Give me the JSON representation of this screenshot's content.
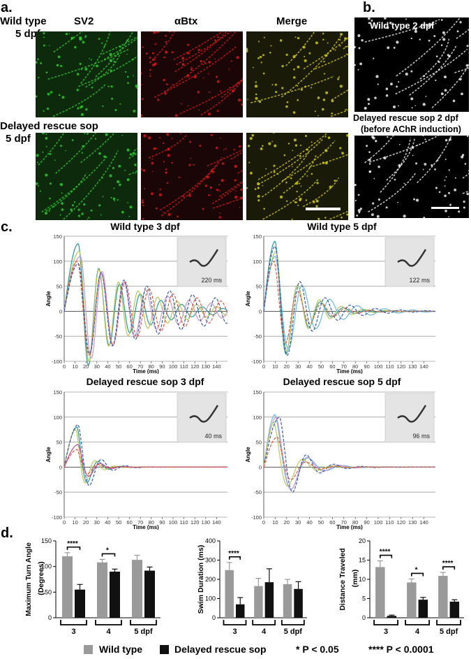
{
  "panels": {
    "a": {
      "letter": "a.",
      "column_labels": [
        "SV2",
        "αBtx",
        "Merge"
      ],
      "row_labels": [
        {
          "line1": "Wild type",
          "line2": "5 dpf"
        },
        {
          "line1": "Delayed rescue sop",
          "line2": "5 dpf"
        }
      ],
      "colors": {
        "sv2": "#2fd12f",
        "abtx": "#e01a1a",
        "merge": "#d6d21a"
      }
    },
    "b": {
      "letter": "b.",
      "labels": [
        "Wild type 2 dpf",
        "Delayed rescue sop 2 dpf",
        "(before AChR induction)"
      ]
    },
    "c": {
      "letter": "c."
    },
    "d": {
      "letter": "d."
    }
  },
  "chart_data": [
    {
      "type": "line",
      "title": "Wild type 3 dpf",
      "xlabel": "Time (ms)",
      "ylabel": "Angle",
      "xlim": [
        0,
        150
      ],
      "ylim": [
        -100,
        150
      ],
      "xticks": [
        0,
        10,
        20,
        30,
        40,
        50,
        60,
        70,
        80,
        90,
        100,
        110,
        120,
        130,
        140
      ],
      "yticks": [
        -100,
        -50,
        0,
        50,
        100,
        150
      ],
      "inset_time": "220 ms",
      "series": [
        {
          "style": "solid",
          "color": "#2a9a9a",
          "peak": 135,
          "peak_t": 13,
          "period": 19,
          "decay": 0.012
        },
        {
          "style": "solid",
          "color": "#b7c85a",
          "peak": 120,
          "peak_t": 14,
          "period": 18,
          "decay": 0.01
        },
        {
          "style": "solid",
          "color": "#c79ad0",
          "peak": 110,
          "peak_t": 15,
          "period": 20,
          "decay": 0.008
        },
        {
          "style": "dashed",
          "color": "#e05a3a",
          "peak": 100,
          "peak_t": 12,
          "period": 22,
          "decay": 0.006
        },
        {
          "style": "dashed",
          "color": "#3a5ab0",
          "peak": 95,
          "peak_t": 13,
          "period": 21,
          "decay": 0.005
        }
      ]
    },
    {
      "type": "line",
      "title": "Wild type 5 dpf",
      "xlabel": "Time (ms)",
      "ylabel": "Angle",
      "xlim": [
        0,
        150
      ],
      "ylim": [
        -100,
        150
      ],
      "xticks": [
        0,
        10,
        20,
        30,
        40,
        50,
        60,
        70,
        80,
        90,
        100,
        110,
        120,
        130,
        140
      ],
      "yticks": [
        -100,
        -50,
        0,
        50,
        100,
        150
      ],
      "inset_time": "122 ms",
      "series": [
        {
          "style": "solid",
          "color": "#2a9a9a",
          "peak": 140,
          "peak_t": 10,
          "period": 20,
          "decay": 0.025
        },
        {
          "style": "solid",
          "color": "#b7c85a",
          "peak": 120,
          "peak_t": 11,
          "period": 19,
          "decay": 0.022
        },
        {
          "style": "solid",
          "color": "#6ab8e0",
          "peak": 110,
          "peak_t": 10,
          "period": 24,
          "decay": 0.016
        },
        {
          "style": "dashed",
          "color": "#e05a3a",
          "peak": 100,
          "peak_t": 9,
          "period": 21,
          "decay": 0.022
        },
        {
          "style": "dashed",
          "color": "#3a5ab0",
          "peak": 130,
          "peak_t": 10,
          "period": 22,
          "decay": 0.018
        }
      ]
    },
    {
      "type": "line",
      "title": "Delayed rescue sop 3 dpf",
      "xlabel": "Time (ms)",
      "ylabel": "Angle",
      "xlim": [
        0,
        150
      ],
      "ylim": [
        -100,
        150
      ],
      "xticks": [
        0,
        10,
        20,
        30,
        40,
        50,
        60,
        70,
        80,
        90,
        100,
        110,
        120,
        130,
        140
      ],
      "yticks": [
        -100,
        -50,
        0,
        50,
        100,
        150
      ],
      "inset_time": "40 ms",
      "series": [
        {
          "style": "solid",
          "color": "#2a9a9a",
          "peak": 80,
          "peak_t": 12,
          "period": 20,
          "decay": 0.05
        },
        {
          "style": "solid",
          "color": "#b7c85a",
          "peak": 75,
          "peak_t": 11,
          "period": 18,
          "decay": 0.05
        },
        {
          "style": "solid",
          "color": "#c04a9a",
          "peak": 45,
          "peak_t": 13,
          "period": 21,
          "decay": 0.045
        },
        {
          "style": "dashed",
          "color": "#3a5ab0",
          "peak": 85,
          "peak_t": 13,
          "period": 22,
          "decay": 0.04
        },
        {
          "style": "dashed",
          "color": "#e05a3a",
          "peak": 35,
          "peak_t": 12,
          "period": 20,
          "decay": 0.05
        }
      ]
    },
    {
      "type": "line",
      "title": "Delayed rescue sop 5 dpf",
      "xlabel": "Time (ms)",
      "ylabel": "Angle",
      "xlim": [
        0,
        150
      ],
      "ylim": [
        -100,
        150
      ],
      "xticks": [
        0,
        10,
        20,
        30,
        40,
        50,
        60,
        70,
        80,
        90,
        100,
        110,
        120,
        130,
        140
      ],
      "yticks": [
        -100,
        -50,
        0,
        50,
        100,
        150
      ],
      "inset_time": "96 ms",
      "series": [
        {
          "style": "solid",
          "color": "#6ab8e0",
          "peak": 105,
          "peak_t": 10,
          "period": 30,
          "decay": 0.03
        },
        {
          "style": "solid",
          "color": "#c79ad0",
          "peak": 100,
          "peak_t": 11,
          "period": 28,
          "decay": 0.03
        },
        {
          "style": "solid",
          "color": "#b7c85a",
          "peak": 90,
          "peak_t": 9,
          "period": 26,
          "decay": 0.035
        },
        {
          "style": "dashed",
          "color": "#3a5ab0",
          "peak": 100,
          "peak_t": 14,
          "period": 24,
          "decay": 0.03
        },
        {
          "style": "dashed",
          "color": "#e05a3a",
          "peak": 60,
          "peak_t": 12,
          "period": 26,
          "decay": 0.035
        }
      ]
    },
    {
      "type": "bar",
      "ylabel": "Maximum Turn Angle (Degrees)",
      "ylim": [
        0,
        150
      ],
      "yticks": [
        0,
        50,
        100,
        150
      ],
      "categories": [
        "3",
        "4",
        "5 dpf"
      ],
      "series": [
        {
          "name": "Wild type",
          "color": "#9a9a9a",
          "values": [
            120,
            108,
            113
          ],
          "errors": [
            7,
            6,
            9
          ]
        },
        {
          "name": "Delayed rescue sop",
          "color": "#111111",
          "values": [
            55,
            90,
            92
          ],
          "errors": [
            10,
            5,
            7
          ]
        }
      ],
      "significance": [
        "****",
        "*",
        ""
      ]
    },
    {
      "type": "bar",
      "ylabel": "Swim Duration (ms)",
      "ylim": [
        0,
        400
      ],
      "yticks": [
        0,
        100,
        200,
        300,
        400
      ],
      "categories": [
        "3",
        "4",
        "5 dpf"
      ],
      "series": [
        {
          "name": "Wild type",
          "color": "#9a9a9a",
          "values": [
            248,
            165,
            175
          ],
          "errors": [
            40,
            40,
            25
          ]
        },
        {
          "name": "Delayed rescue sop",
          "color": "#111111",
          "values": [
            70,
            185,
            150
          ],
          "errors": [
            35,
            70,
            38
          ]
        }
      ],
      "significance": [
        "****",
        "",
        ""
      ]
    },
    {
      "type": "bar",
      "ylabel": "Distance Traveled (mm)",
      "ylim": [
        0,
        20
      ],
      "yticks": [
        0,
        5,
        10,
        15,
        20
      ],
      "categories": [
        "3",
        "4",
        "5 dpf"
      ],
      "series": [
        {
          "name": "Wild type",
          "color": "#9a9a9a",
          "values": [
            13.2,
            9.2,
            10.9
          ],
          "errors": [
            1.6,
            0.9,
            0.9
          ]
        },
        {
          "name": "Delayed rescue sop",
          "color": "#111111",
          "values": [
            0.5,
            4.7,
            4.2
          ],
          "errors": [
            0.2,
            0.6,
            0.5
          ]
        }
      ],
      "significance": [
        "****",
        "*",
        "****"
      ]
    }
  ],
  "legend": {
    "wild_type": "Wild type",
    "delayed": "Delayed rescue sop",
    "sig1": "* P < 0.05",
    "sig2": "**** P < 0.0001"
  }
}
